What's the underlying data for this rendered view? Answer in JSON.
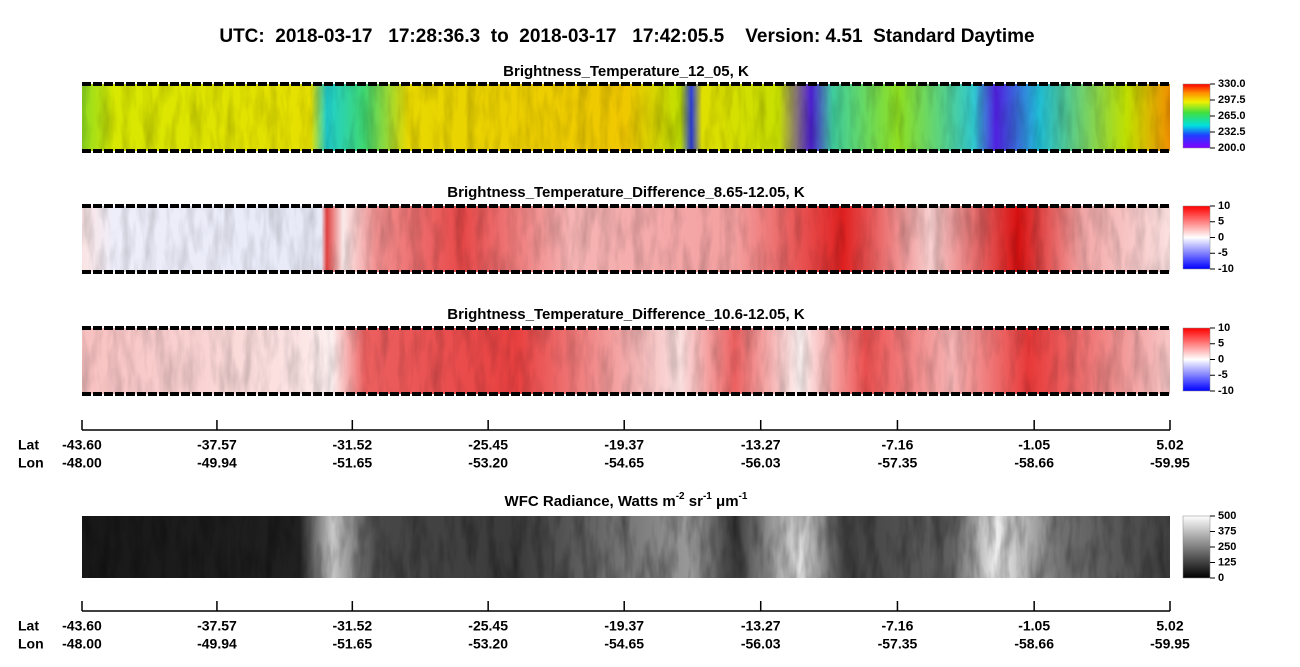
{
  "header": {
    "title": "UTC:  2018-03-17   17:28:36.3  to  2018-03-17   17:42:05.5    Version: 4.51  Standard Daytime"
  },
  "panels": [
    {
      "title": "Brightness_Temperature_12_05, K",
      "colorbar": {
        "lim": [
          200,
          330
        ],
        "ticks": [
          {
            "value": 200,
            "label": "200.0"
          },
          {
            "value": 232.5,
            "label": "232.5"
          },
          {
            "value": 265,
            "label": "265.0"
          },
          {
            "value": 297.5,
            "label": "297.5"
          },
          {
            "value": 330,
            "label": "330.0"
          }
        ]
      }
    },
    {
      "title": "Brightness_Temperature_Difference_8.65-12.05, K",
      "colorbar": {
        "lim": [
          -10,
          10
        ],
        "ticks": [
          -10,
          -5,
          0,
          5,
          10
        ]
      }
    },
    {
      "title": "Brightness_Temperature_Difference_10.6-12.05, K",
      "colorbar": {
        "lim": [
          -10,
          10
        ],
        "ticks": [
          -10,
          -5,
          0,
          5,
          10
        ]
      }
    },
    {
      "title_parts": [
        "WFC Radiance, Watts m",
        "-2",
        " sr",
        "-1",
        " μm",
        "-1"
      ],
      "colorbar": {
        "lim": [
          0,
          500
        ],
        "ticks": [
          0,
          125,
          250,
          375,
          500
        ]
      }
    }
  ],
  "axes": [
    {
      "lat_label": "Lat",
      "lon_label": "Lon",
      "xlim": [
        -43.6,
        5.02
      ],
      "lat_ticks": [
        {
          "value": -43.6,
          "label": "-43.60"
        },
        {
          "value": -37.57,
          "label": "-37.57"
        },
        {
          "value": -31.52,
          "label": "-31.52"
        },
        {
          "value": -25.45,
          "label": "-25.45"
        },
        {
          "value": -19.37,
          "label": "-19.37"
        },
        {
          "value": -13.27,
          "label": "-13.27"
        },
        {
          "value": -7.16,
          "label": "-7.16"
        },
        {
          "value": -1.05,
          "label": "-1.05"
        },
        {
          "value": 5.02,
          "label": "5.02"
        }
      ],
      "lon_ticks": [
        {
          "value": -48,
          "label": "-48.00"
        },
        {
          "value": -49.94,
          "label": "-49.94"
        },
        {
          "value": -51.65,
          "label": "-51.65"
        },
        {
          "value": -53.2,
          "label": "-53.20"
        },
        {
          "value": -54.65,
          "label": "-54.65"
        },
        {
          "value": -56.03,
          "label": "-56.03"
        },
        {
          "value": -57.35,
          "label": "-57.35"
        },
        {
          "value": -58.66,
          "label": "-58.66"
        },
        {
          "value": -59.95,
          "label": "-59.95"
        }
      ]
    },
    {
      "lat_label": "Lat",
      "lon_label": "Lon",
      "xlim": [
        -43.6,
        5.02
      ],
      "lat_ticks": [
        {
          "value": -43.6,
          "label": "-43.60"
        },
        {
          "value": -37.57,
          "label": "-37.57"
        },
        {
          "value": -31.52,
          "label": "-31.52"
        },
        {
          "value": -25.45,
          "label": "-25.45"
        },
        {
          "value": -19.37,
          "label": "-19.37"
        },
        {
          "value": -13.27,
          "label": "-13.27"
        },
        {
          "value": -7.16,
          "label": "-7.16"
        },
        {
          "value": -1.05,
          "label": "-1.05"
        },
        {
          "value": 5.02,
          "label": "5.02"
        }
      ],
      "lon_ticks": [
        {
          "value": -48,
          "label": "-48.00"
        },
        {
          "value": -49.94,
          "label": "-49.94"
        },
        {
          "value": -51.65,
          "label": "-51.65"
        },
        {
          "value": -53.2,
          "label": "-53.20"
        },
        {
          "value": -54.65,
          "label": "-54.65"
        },
        {
          "value": -56.03,
          "label": "-56.03"
        },
        {
          "value": -57.35,
          "label": "-57.35"
        },
        {
          "value": -58.66,
          "label": "-58.66"
        },
        {
          "value": -59.95,
          "label": "-59.95"
        }
      ]
    }
  ]
}
